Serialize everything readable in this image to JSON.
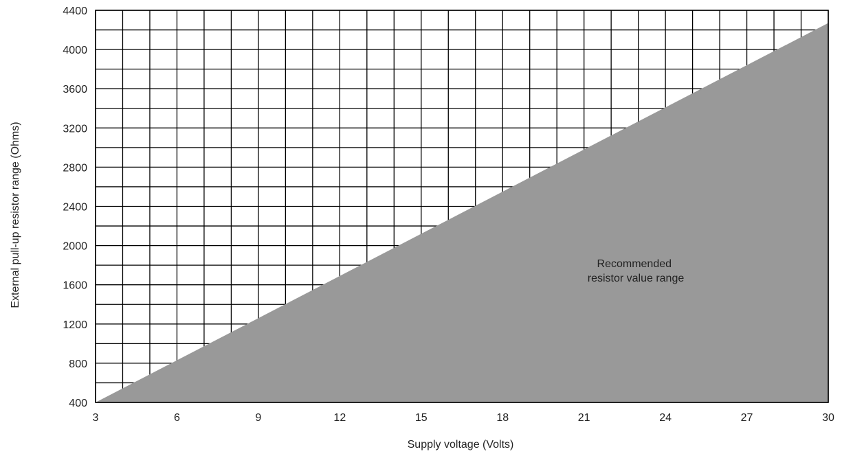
{
  "chart_data": {
    "type": "area",
    "title": "",
    "xlabel": "Supply voltage (Volts)",
    "ylabel": "External pull-up resistor range (Ohms)",
    "xlim": [
      3,
      30
    ],
    "ylim": [
      400,
      4400
    ],
    "x_ticks": [
      3,
      6,
      9,
      12,
      15,
      18,
      21,
      24,
      27,
      30
    ],
    "y_ticks": [
      400,
      800,
      1200,
      1600,
      2000,
      2400,
      2800,
      3200,
      3600,
      4000,
      4400
    ],
    "x_minor_step": 1,
    "y_minor_step": 200,
    "grid": true,
    "series": [
      {
        "x": [
          3,
          30
        ],
        "y": [
          400,
          4270
        ]
      }
    ],
    "region_label": [
      "Recommended",
      "resistor value range"
    ],
    "colors": {
      "fill": "#999999",
      "grid": "#000000",
      "background": "#ffffff"
    }
  }
}
